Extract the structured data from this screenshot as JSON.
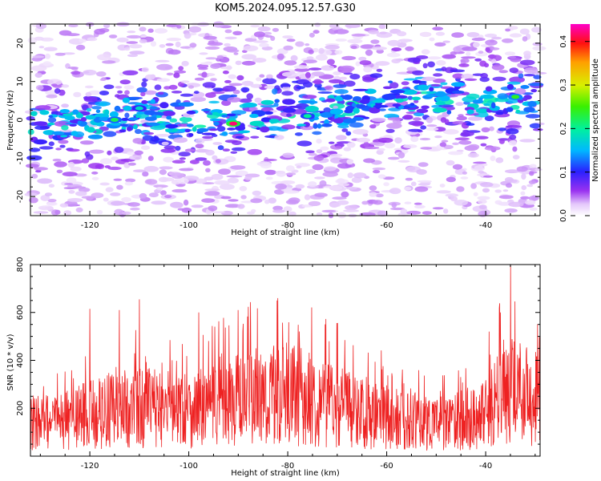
{
  "title": "KOM5.2024.095.12.57.G30",
  "chart_data": [
    {
      "type": "heatmap",
      "xlabel": "Height of straight line (km)",
      "ylabel": "Frequency (Hz)",
      "xlim": [
        -132,
        -29
      ],
      "ylim": [
        -25,
        25
      ],
      "xticks": [
        -120,
        -100,
        -80,
        -60,
        -40
      ],
      "yticks": [
        -20,
        -10,
        0,
        10,
        20
      ],
      "colorbar": {
        "label": "Normalized spectral amplitude",
        "range": [
          0,
          0.44
        ],
        "ticks": [
          0.0,
          0.1,
          0.2,
          0.3,
          0.4
        ],
        "colormap": "rainbow (white-violet-blue-cyan-green-yellow-red-magenta)"
      },
      "ridge": {
        "x": [
          -132,
          -120,
          -110,
          -100,
          -90,
          -80,
          -70,
          -60,
          -50,
          -40,
          -30
        ],
        "freq": [
          -2,
          -1,
          2,
          0,
          0,
          2,
          2,
          6,
          6,
          5,
          5
        ]
      },
      "peaks": [
        {
          "x": -91,
          "freq": -1,
          "value": 0.42
        },
        {
          "x": -115,
          "freq": 0,
          "value": 0.22
        },
        {
          "x": -34,
          "freq": 6,
          "value": 0.24
        },
        {
          "x": -110,
          "freq": 3,
          "value": 0.18
        },
        {
          "x": -76,
          "freq": 1,
          "value": 0.2
        }
      ]
    },
    {
      "type": "line",
      "xlabel": "Height of straight line (km)",
      "ylabel": "SNR (10 * v/v)",
      "xlim": [
        -132,
        -29
      ],
      "ylim": [
        0,
        800
      ],
      "xticks": [
        -120,
        -100,
        -80,
        -60,
        -40
      ],
      "yticks": [
        200,
        400,
        600,
        800
      ],
      "color": "#ee2222",
      "baseline_envelope": {
        "x": [
          -132,
          -125,
          -120,
          -110,
          -100,
          -90,
          -80,
          -70,
          -60,
          -50,
          -45,
          -40,
          -36,
          -33,
          -29
        ],
        "y": [
          150,
          160,
          190,
          220,
          210,
          250,
          280,
          230,
          170,
          150,
          150,
          190,
          300,
          290,
          240
        ]
      },
      "spikes": [
        {
          "x": -35,
          "y": 800
        },
        {
          "x": -110,
          "y": 655
        },
        {
          "x": -82,
          "y": 660
        },
        {
          "x": -120,
          "y": 615
        },
        {
          "x": -114,
          "y": 610
        },
        {
          "x": -90,
          "y": 610
        },
        {
          "x": -98,
          "y": 600
        },
        {
          "x": -37,
          "y": 600
        }
      ]
    }
  ]
}
